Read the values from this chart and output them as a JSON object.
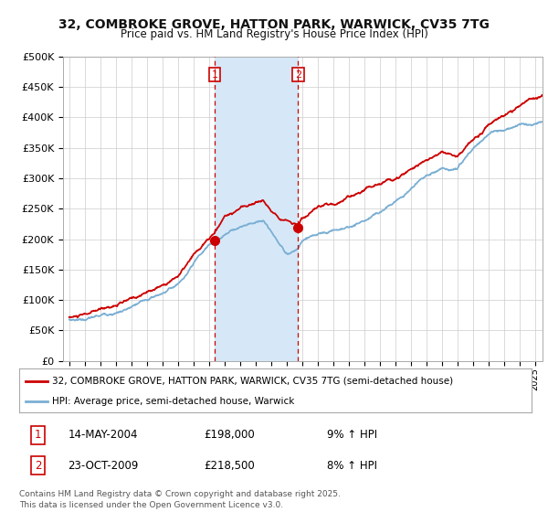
{
  "title1": "32, COMBROKE GROVE, HATTON PARK, WARWICK, CV35 7TG",
  "title2": "Price paid vs. HM Land Registry's House Price Index (HPI)",
  "bg_color": "#ffffff",
  "plot_bg": "#ffffff",
  "grid_color": "#cccccc",
  "red_line_color": "#cc0000",
  "blue_line_color": "#7aafd4",
  "shade_color": "#d6e8f7",
  "marker1_date_x": 2004.37,
  "marker2_date_x": 2009.75,
  "marker1_price": 198000,
  "marker2_price": 218500,
  "legend_line1": "32, COMBROKE GROVE, HATTON PARK, WARWICK, CV35 7TG (semi-detached house)",
  "legend_line2": "HPI: Average price, semi-detached house, Warwick",
  "table_row1": [
    "1",
    "14-MAY-2004",
    "£198,000",
    "9% ↑ HPI"
  ],
  "table_row2": [
    "2",
    "23-OCT-2009",
    "£218,500",
    "8% ↑ HPI"
  ],
  "footer": "Contains HM Land Registry data © Crown copyright and database right 2025.\nThis data is licensed under the Open Government Licence v3.0.",
  "xmin": 1994.6,
  "xmax": 2025.5,
  "ymin": 0,
  "ymax": 500000,
  "red_anchors_x": [
    1995,
    1996,
    1997,
    1998,
    1999,
    2000,
    2001,
    2002,
    2003,
    2004.37,
    2005,
    2006,
    2007,
    2007.5,
    2008,
    2009.75,
    2010,
    2011,
    2012,
    2013,
    2014,
    2015,
    2016,
    2017,
    2018,
    2019,
    2020,
    2021,
    2022,
    2023,
    2024,
    2025,
    2025.5
  ],
  "red_anchors_y": [
    72000,
    74000,
    80000,
    88000,
    95000,
    105000,
    118000,
    135000,
    165000,
    198000,
    225000,
    240000,
    250000,
    255000,
    235000,
    218500,
    230000,
    240000,
    245000,
    258000,
    272000,
    285000,
    300000,
    318000,
    338000,
    350000,
    345000,
    370000,
    400000,
    410000,
    425000,
    435000,
    438000
  ],
  "blue_anchors_x": [
    1995,
    1996,
    1997,
    1998,
    1999,
    2000,
    2001,
    2002,
    2003,
    2004,
    2005,
    2006,
    2007,
    2007.5,
    2008,
    2008.5,
    2009,
    2009.5,
    2009.75,
    2010,
    2011,
    2012,
    2013,
    2014,
    2015,
    2016,
    2017,
    2018,
    2019,
    2020,
    2021,
    2022,
    2023,
    2024,
    2025,
    2025.5
  ],
  "blue_anchors_y": [
    68000,
    70000,
    75000,
    82000,
    89000,
    98000,
    110000,
    126000,
    155000,
    183000,
    200000,
    215000,
    225000,
    228000,
    210000,
    190000,
    175000,
    178000,
    182000,
    193000,
    205000,
    210000,
    218000,
    230000,
    248000,
    268000,
    290000,
    310000,
    320000,
    318000,
    348000,
    375000,
    382000,
    396000,
    390000,
    392000
  ]
}
